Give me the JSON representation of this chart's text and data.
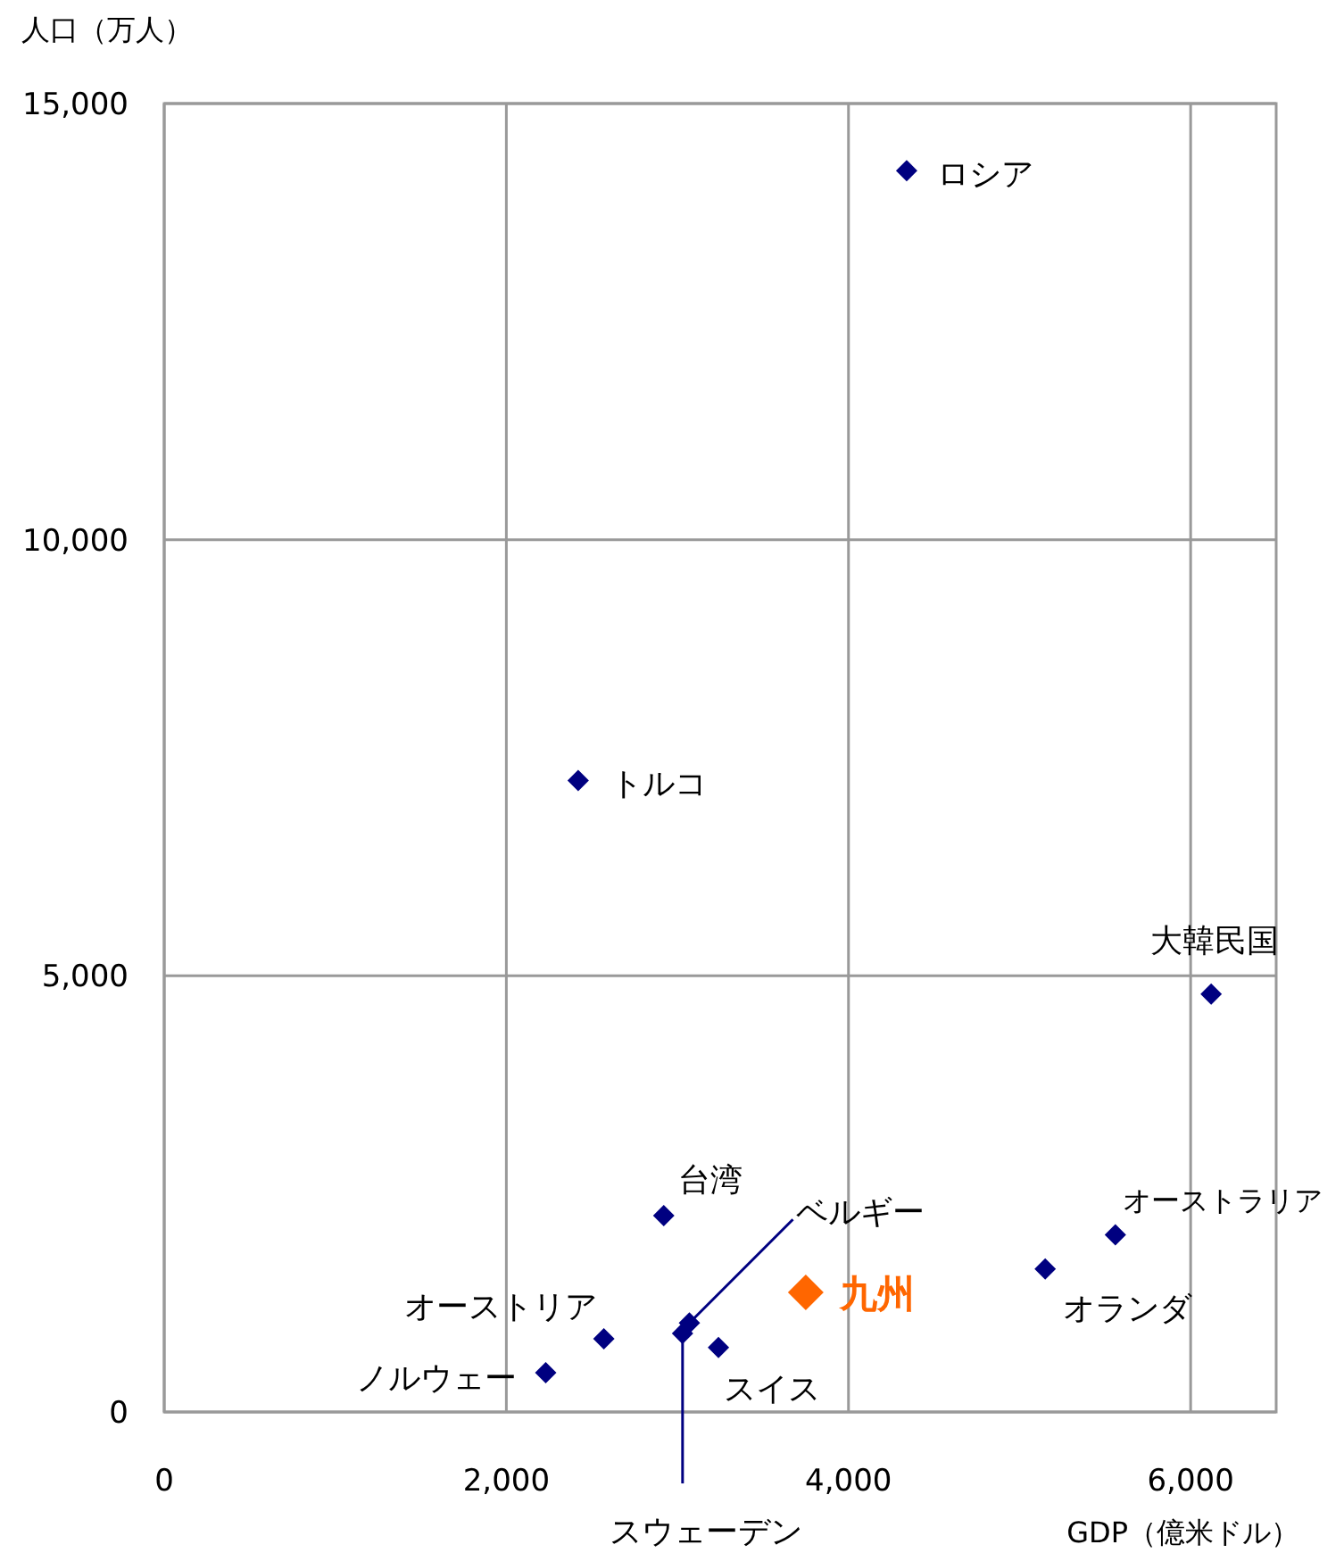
{
  "chart_data": {
    "type": "scatter",
    "xlabel": "GDP（億米ドル）",
    "ylabel": "人口（万人）",
    "xlim": [
      0,
      6500
    ],
    "ylim": [
      0,
      15000
    ],
    "xticks": [
      0,
      {
        "value": 2000,
        "label": "2,000"
      },
      {
        "value": 4000,
        "label": "4,000"
      },
      {
        "value": 6000,
        "label": "6,000"
      }
    ],
    "yticks": [
      0,
      {
        "value": 5000,
        "label": "5,000"
      },
      {
        "value": 10000,
        "label": "10,000"
      },
      {
        "value": 15000,
        "label": "15,000"
      }
    ],
    "grid": true,
    "marker": "diamond",
    "series": [
      {
        "color": "#000080",
        "x": [
          4340,
          2420,
          6120,
          2920,
          5560,
          5150,
          3070,
          3030,
          3240,
          2570,
          2230
        ],
        "values": [
          14230,
          7240,
          4790,
          2250,
          2030,
          1640,
          1020,
          900,
          740,
          840,
          450
        ]
      },
      {
        "name": "九州",
        "color": "#ff6600",
        "x": [
          3750
        ],
        "values": [
          1370
        ]
      }
    ],
    "annotations": [
      {
        "text": "ロシア",
        "x": 4340,
        "y": 14230
      },
      {
        "text": "トルコ",
        "x": 2420,
        "y": 7240
      },
      {
        "text": "大韓民国",
        "x": 6120,
        "y": 4790
      },
      {
        "text": "台湾",
        "x": 2920,
        "y": 2250
      },
      {
        "text": "オーストラリア",
        "x": 5560,
        "y": 2030
      },
      {
        "text": "オランダ",
        "x": 5150,
        "y": 1640
      },
      {
        "text": "ベルギー",
        "x": 3070,
        "y": 1020
      },
      {
        "text": "スウェーデン",
        "x": 3030,
        "y": 900
      },
      {
        "text": "スイス",
        "x": 3240,
        "y": 740
      },
      {
        "text": "オーストリア",
        "x": 2570,
        "y": 840
      },
      {
        "text": "ノルウェー",
        "x": 2230,
        "y": 450
      }
    ]
  }
}
